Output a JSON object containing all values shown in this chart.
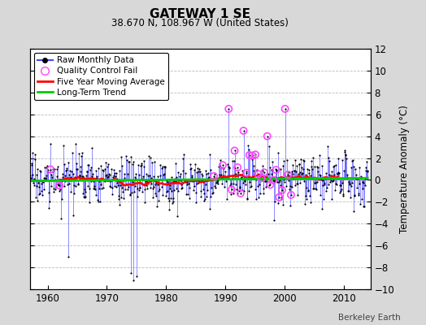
{
  "title": "GATEWAY 1 SE",
  "subtitle": "38.670 N, 108.967 W (United States)",
  "ylabel": "Temperature Anomaly (°C)",
  "credit": "Berkeley Earth",
  "year_start": 1957,
  "year_end": 2014,
  "ylim": [
    -10,
    12
  ],
  "yticks": [
    -10,
    -8,
    -6,
    -4,
    -2,
    0,
    2,
    4,
    6,
    8,
    10,
    12
  ],
  "xticks": [
    1960,
    1970,
    1980,
    1990,
    2000,
    2010
  ],
  "raw_color": "#4444ff",
  "moving_avg_color": "#ff0000",
  "trend_color": "#00cc00",
  "qc_color": "#ff44ff",
  "bg_color": "#d8d8d8",
  "plot_bg": "#ffffff",
  "seed": 17
}
